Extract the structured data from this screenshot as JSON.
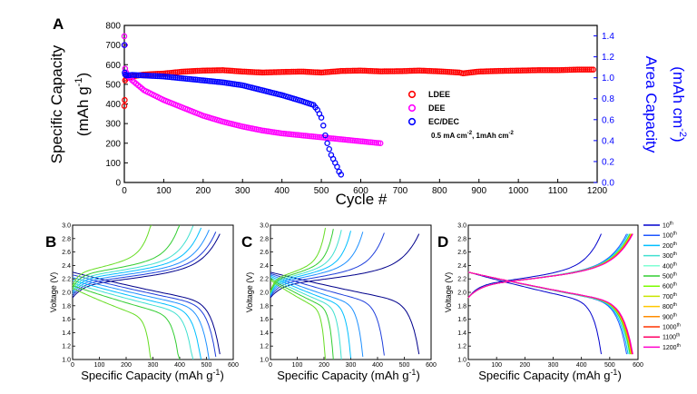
{
  "colors": {
    "LDEE": "#ff0000",
    "DEE": "#ff00ff",
    "EC_DEC": "#0000ff",
    "axis": "#000000",
    "right_axis": "#0000ff"
  },
  "chart_data": [
    {
      "panel": "A",
      "type": "scatter",
      "xlabel": "Cycle #",
      "ylabel": "Specific Capacity",
      "ylabel_unit": "(mAh g",
      "ylabel_unit_sup": "-1",
      "ylabel_unit_close": ")",
      "y2label": "Area Capacity",
      "y2label_unit": "(mAh cm",
      "y2label_unit_sup": "-2",
      "y2label_unit_close": ")",
      "xlim": [
        0,
        1200
      ],
      "ylim": [
        0,
        800
      ],
      "y2lim": [
        0,
        1.5
      ],
      "xticks": [
        0,
        100,
        200,
        300,
        400,
        500,
        600,
        700,
        800,
        900,
        1000,
        1100,
        1200
      ],
      "yticks": [
        0,
        100,
        200,
        300,
        400,
        500,
        600,
        700,
        800
      ],
      "y2ticks": [
        "0.0",
        "0.2",
        "0.4",
        "0.6",
        "0.8",
        "1.0",
        "1.2",
        "1.4"
      ],
      "legend_position": "center-right",
      "annotation": "0.5 mA cm",
      "annotation_sup1": "-2",
      "annotation_mid": ", 1mAh cm",
      "annotation_sup2": "-2",
      "series": [
        {
          "name": "LDEE",
          "color": "#ff0000",
          "x": [
            0,
            1,
            2,
            5,
            20,
            50,
            100,
            150,
            200,
            250,
            300,
            350,
            400,
            450,
            500,
            550,
            600,
            650,
            700,
            750,
            800,
            850,
            860,
            900,
            950,
            1000,
            1050,
            1100,
            1150,
            1190
          ],
          "y": [
            390,
            420,
            520,
            530,
            540,
            550,
            555,
            565,
            570,
            572,
            565,
            560,
            563,
            565,
            560,
            568,
            570,
            566,
            567,
            570,
            566,
            560,
            556,
            565,
            568,
            570,
            572,
            572,
            575,
            575
          ]
        },
        {
          "name": "DEE",
          "color": "#ff00ff",
          "x": [
            0,
            1,
            2,
            5,
            10,
            20,
            50,
            100,
            150,
            200,
            250,
            300,
            350,
            400,
            450,
            500,
            550,
            600,
            650
          ],
          "y": [
            745,
            700,
            580,
            560,
            540,
            520,
            470,
            420,
            380,
            340,
            310,
            285,
            265,
            250,
            240,
            230,
            220,
            210,
            200
          ]
        },
        {
          "name": "EC/DEC",
          "color": "#0000ff",
          "x": [
            0,
            1,
            2,
            5,
            20,
            50,
            100,
            150,
            200,
            250,
            300,
            350,
            400,
            450,
            480,
            490,
            500,
            505,
            510,
            515,
            520,
            525,
            530,
            535,
            540,
            545,
            550
          ],
          "y": [
            700,
            560,
            550,
            545,
            548,
            545,
            540,
            530,
            520,
            510,
            495,
            470,
            445,
            415,
            395,
            370,
            330,
            290,
            240,
            200,
            170,
            140,
            120,
            100,
            80,
            55,
            40
          ]
        }
      ]
    },
    {
      "panel": "B",
      "type": "line",
      "xlabel": "Specific Capacity",
      "xlabel_unit": "(mAh g",
      "xlabel_unit_sup": "-1",
      "xlabel_unit_close": ")",
      "ylabel": "Voltage (V)",
      "xlim": [
        0,
        600
      ],
      "ylim": [
        1.0,
        3.0
      ],
      "xticks": [
        0,
        100,
        200,
        300,
        400,
        500,
        600
      ],
      "yticks": [
        "1.0",
        "1.2",
        "1.4",
        "1.6",
        "1.8",
        "2.0",
        "2.2",
        "2.4",
        "2.6",
        "2.8",
        "3.0"
      ],
      "curves": [
        {
          "cycle": "10",
          "color": "#00008b",
          "cap": 550
        },
        {
          "cycle": "100",
          "color": "#1f3fdb",
          "cap": 535
        },
        {
          "cycle": "200",
          "color": "#1e90ff",
          "cap": 510
        },
        {
          "cycle": "300",
          "color": "#00bfff",
          "cap": 480
        },
        {
          "cycle": "400",
          "color": "#40e0d0",
          "cap": 450
        },
        {
          "cycle": "500",
          "color": "#32cd32",
          "cap": 400
        },
        {
          "cycle": "600",
          "color": "#66dd22",
          "cap": 295
        }
      ]
    },
    {
      "panel": "C",
      "type": "line",
      "xlabel": "Specific Capacity",
      "xlabel_unit": "(mAh g",
      "xlabel_unit_sup": "-1",
      "xlabel_unit_close": ")",
      "ylabel": "Voltage (V)",
      "xlim": [
        0,
        600
      ],
      "ylim": [
        1.0,
        3.0
      ],
      "xticks": [
        0,
        100,
        200,
        300,
        400,
        500,
        600
      ],
      "yticks": [
        "1.0",
        "1.2",
        "1.4",
        "1.6",
        "1.8",
        "2.0",
        "2.2",
        "2.4",
        "2.6",
        "2.8",
        "3.0"
      ],
      "curves": [
        {
          "cycle": "10",
          "color": "#00008b",
          "cap": 555
        },
        {
          "cycle": "100",
          "color": "#1f3fdb",
          "cap": 425
        },
        {
          "cycle": "200",
          "color": "#1e90ff",
          "cap": 345
        },
        {
          "cycle": "300",
          "color": "#00bfff",
          "cap": 300
        },
        {
          "cycle": "400",
          "color": "#40e0d0",
          "cap": 265
        },
        {
          "cycle": "500",
          "color": "#32cd32",
          "cap": 235
        },
        {
          "cycle": "600",
          "color": "#66dd22",
          "cap": 205
        }
      ]
    },
    {
      "panel": "D",
      "type": "line",
      "xlabel": "Specific Capacity",
      "xlabel_unit": "(mAh g",
      "xlabel_unit_sup": "-1",
      "xlabel_unit_close": ")",
      "ylabel": "Voltage (V)",
      "xlim": [
        0,
        600
      ],
      "ylim": [
        1.0,
        3.0
      ],
      "xticks": [
        0,
        100,
        200,
        300,
        400,
        500,
        600
      ],
      "yticks": [
        "1.0",
        "1.2",
        "1.4",
        "1.6",
        "1.8",
        "2.0",
        "2.2",
        "2.4",
        "2.6",
        "2.8",
        "3.0"
      ],
      "legend_position": "right",
      "curves": [
        {
          "cycle": "10",
          "color": "#0000cd",
          "cap": 470
        },
        {
          "cycle": "100",
          "color": "#1e56ff",
          "cap": 560
        },
        {
          "cycle": "200",
          "color": "#00bfff",
          "cap": 565
        },
        {
          "cycle": "300",
          "color": "#40e0d0",
          "cap": 570
        },
        {
          "cycle": "400",
          "color": "#7fffd4",
          "cap": 570
        },
        {
          "cycle": "500",
          "color": "#32cd32",
          "cap": 572
        },
        {
          "cycle": "600",
          "color": "#7cfc00",
          "cap": 575
        },
        {
          "cycle": "700",
          "color": "#c8e600",
          "cap": 575
        },
        {
          "cycle": "800",
          "color": "#ffc800",
          "cap": 578
        },
        {
          "cycle": "900",
          "color": "#ff8c00",
          "cap": 578
        },
        {
          "cycle": "1000",
          "color": "#ff3300",
          "cap": 580
        },
        {
          "cycle": "1100",
          "color": "#ff0066",
          "cap": 580
        },
        {
          "cycle": "1200",
          "color": "#ff00cc",
          "cap": 582
        }
      ]
    }
  ]
}
